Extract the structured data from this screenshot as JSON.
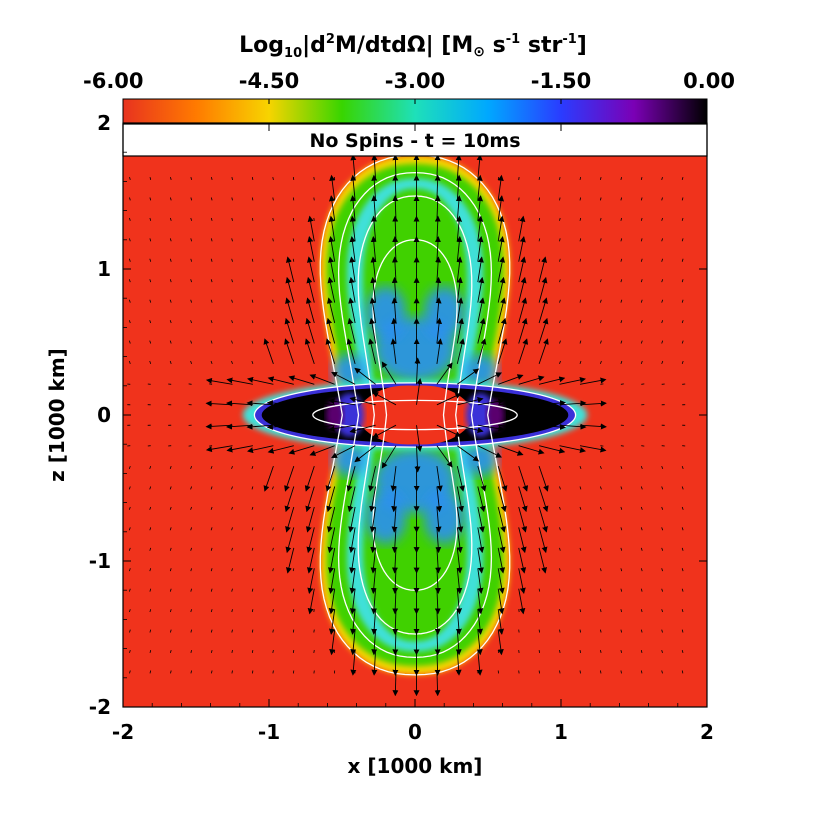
{
  "chart_data": {
    "type": "heatmap",
    "title": "No Spins - t = 10ms",
    "xlabel": "x [1000 km]",
    "ylabel": "z [1000 km]",
    "xlim": [
      -2,
      2
    ],
    "ylim": [
      -2,
      2
    ],
    "x_ticks": [
      "-2",
      "-1",
      "0",
      "1",
      "2"
    ],
    "y_ticks": [
      "-2",
      "-1",
      "0",
      "1",
      "2"
    ],
    "colorbar": {
      "label_prefix": "Log",
      "label_sub": "10",
      "label_body": "|d",
      "label_sup": "2",
      "label_rest": "M/dtdΩ| [M",
      "label_sun": "⊙",
      "label_units": " s",
      "label_sup2": "-1",
      "label_units2": " str",
      "label_sup3": "-1",
      "label_close": "]",
      "range": [
        -6.0,
        0.0
      ],
      "tick_labels": [
        "-6.00",
        "-4.50",
        "-3.00",
        "-1.50",
        "0.00"
      ],
      "colormap": [
        "#e8331f",
        "#ff7a00",
        "#f7d400",
        "#38d500",
        "#1ee0b9",
        "#00a8ff",
        "#2a3cff",
        "#7b00b5",
        "#000000"
      ]
    },
    "colors": {
      "background_outflow_free": "#f0331c",
      "envelope_edge": "#f7d400",
      "lobe_green": "#3fd100",
      "lobe_cyan": "#3fe0d8",
      "lobe_blue": "#2a8cff",
      "torus_blue": "#3a30d8",
      "torus_core": "#000000",
      "contour": "#ffffff",
      "arrow": "#000000"
    },
    "structure": {
      "outer_envelope_extent_x": [
        -1.3,
        1.3
      ],
      "outer_envelope_extent_z": [
        -1.75,
        1.75
      ],
      "torus_extent_x": [
        -1.1,
        1.1
      ],
      "torus_extent_z": [
        -0.2,
        0.2
      ],
      "peak_log_value": 0.0,
      "background_log_value": -6.0
    }
  }
}
